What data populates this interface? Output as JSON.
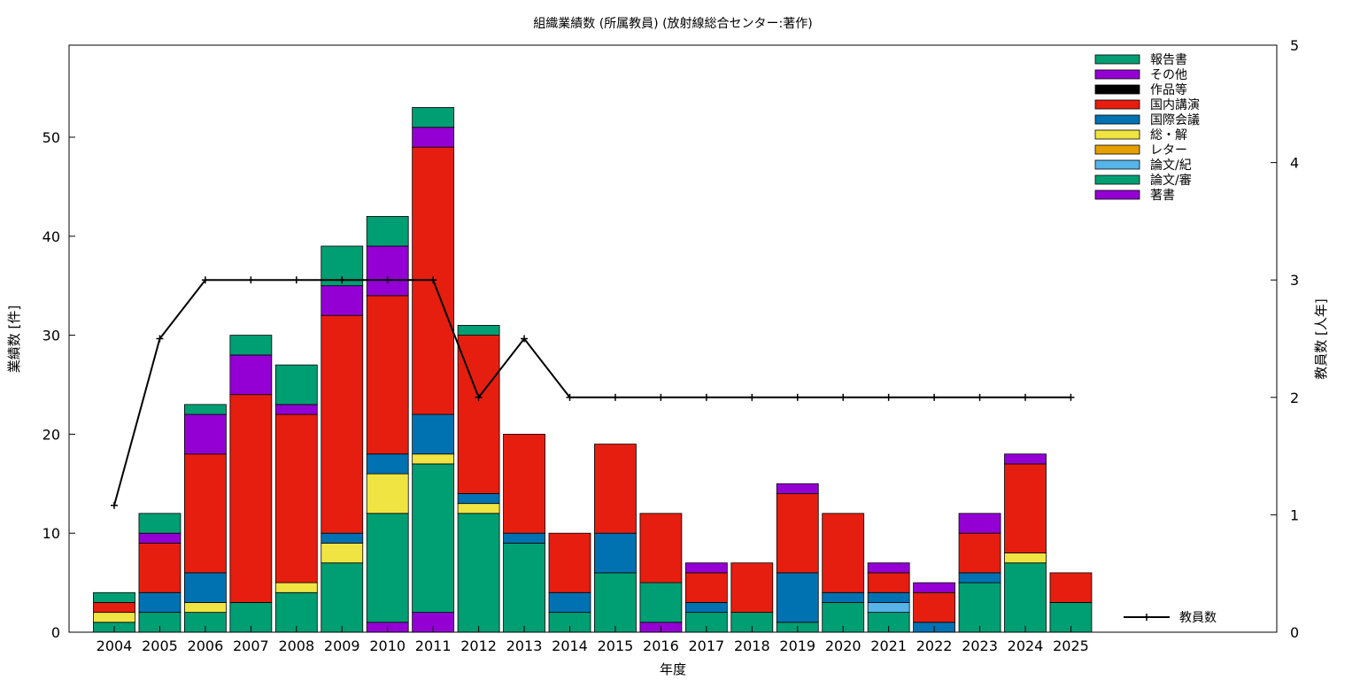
{
  "chart_data": {
    "type": "bar",
    "stacked": true,
    "title": "組織業績数 (所属教員) (放射線総合センター:著作)",
    "xlabel": "年度",
    "ylabel": "業績数 [件]",
    "y2label": "教員数 [人年]",
    "ylim": [
      0,
      59.3
    ],
    "y2lim": [
      0,
      5
    ],
    "yticks": [
      0,
      10,
      20,
      30,
      40,
      50
    ],
    "y2ticks": [
      0,
      1,
      2,
      3,
      4,
      5
    ],
    "grid": false,
    "legend_position": "top-right",
    "categories": [
      "2004",
      "2005",
      "2006",
      "2007",
      "2008",
      "2009",
      "2010",
      "2011",
      "2012",
      "2013",
      "2014",
      "2015",
      "2016",
      "2017",
      "2018",
      "2019",
      "2020",
      "2021",
      "2022",
      "2023",
      "2024",
      "2025"
    ],
    "series": [
      {
        "name": "著書",
        "color": "#9400d3",
        "values": [
          0,
          0,
          0,
          0,
          0,
          0,
          1,
          2,
          0,
          0,
          0,
          0,
          1,
          0,
          0,
          0,
          0,
          0,
          0,
          0,
          0,
          0
        ]
      },
      {
        "name": "論文/審",
        "color": "#009e73",
        "values": [
          1,
          2,
          2,
          3,
          4,
          7,
          11,
          15,
          12,
          9,
          2,
          6,
          4,
          2,
          2,
          1,
          3,
          2,
          0,
          5,
          7,
          3
        ]
      },
      {
        "name": "論文/紀",
        "color": "#56b4e9",
        "values": [
          0,
          0,
          0,
          0,
          0,
          0,
          0,
          0,
          0,
          0,
          0,
          0,
          0,
          0,
          0,
          0,
          0,
          1,
          0,
          0,
          0,
          0
        ]
      },
      {
        "name": "レター",
        "color": "#e69f00",
        "values": [
          0,
          0,
          0,
          0,
          0,
          0,
          0,
          0,
          0,
          0,
          0,
          0,
          0,
          0,
          0,
          0,
          0,
          0,
          0,
          0,
          0,
          0
        ]
      },
      {
        "name": "総・解",
        "color": "#f0e442",
        "values": [
          1,
          0,
          1,
          0,
          1,
          2,
          4,
          1,
          1,
          0,
          0,
          0,
          0,
          0,
          0,
          0,
          0,
          0,
          0,
          0,
          1,
          0
        ]
      },
      {
        "name": "国際会議",
        "color": "#0072b2",
        "values": [
          0,
          2,
          3,
          0,
          0,
          1,
          2,
          4,
          1,
          1,
          2,
          4,
          0,
          1,
          0,
          5,
          1,
          1,
          1,
          1,
          0,
          0
        ]
      },
      {
        "name": "国内講演",
        "color": "#e51e10",
        "values": [
          1,
          5,
          12,
          21,
          17,
          22,
          16,
          27,
          16,
          10,
          6,
          9,
          7,
          3,
          5,
          8,
          8,
          2,
          3,
          4,
          9,
          3
        ]
      },
      {
        "name": "作品等",
        "color": "#000000",
        "values": [
          0,
          0,
          0,
          0,
          0,
          0,
          0,
          0,
          0,
          0,
          0,
          0,
          0,
          0,
          0,
          0,
          0,
          0,
          0,
          0,
          0,
          0
        ]
      },
      {
        "name": "その他",
        "color": "#9400d3",
        "values": [
          0,
          1,
          4,
          4,
          1,
          3,
          5,
          2,
          0,
          0,
          0,
          0,
          0,
          1,
          0,
          1,
          0,
          1,
          1,
          2,
          1,
          0
        ]
      },
      {
        "name": "報告書",
        "color": "#009e73",
        "values": [
          1,
          2,
          1,
          2,
          4,
          4,
          3,
          2,
          1,
          0,
          0,
          0,
          0,
          0,
          0,
          0,
          0,
          0,
          0,
          0,
          0,
          0
        ]
      }
    ],
    "line_series": {
      "name": "教員数",
      "axis": "y2",
      "color": "#000000",
      "values": [
        1.08,
        2.5,
        3,
        3,
        3,
        3,
        3,
        3,
        2,
        2.5,
        2,
        2,
        2,
        2,
        2,
        2,
        2,
        2,
        2,
        2,
        2,
        2
      ]
    }
  }
}
